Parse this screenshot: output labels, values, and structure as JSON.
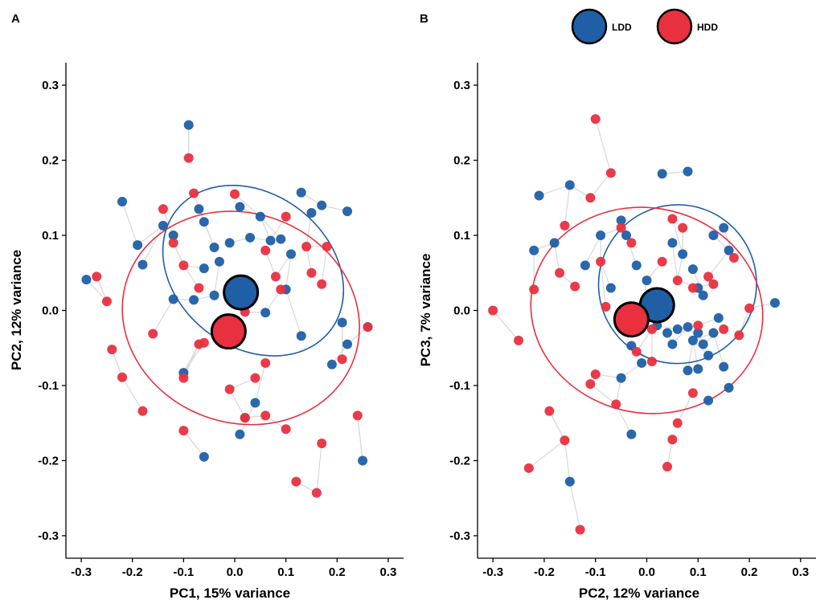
{
  "legend": [
    {
      "name": "LDD",
      "color": "#1f5fa6"
    },
    {
      "name": "HDD",
      "color": "#e8303f"
    }
  ],
  "colors": {
    "LDD": "#1f5fa6",
    "HDD": "#e8303f",
    "segment": "#d9d9d9"
  },
  "chart_data": [
    {
      "type": "scatter",
      "panel_label": "A",
      "xlabel": "PC1, 15% variance",
      "ylabel": "PC2, 12% variance",
      "xlim": [
        -0.33,
        0.33
      ],
      "ylim": [
        -0.33,
        0.33
      ],
      "xticks": [
        -0.3,
        -0.2,
        -0.1,
        0.0,
        0.1,
        0.2,
        0.3
      ],
      "yticks": [
        -0.3,
        -0.2,
        -0.1,
        0.0,
        0.1,
        0.2,
        0.3
      ],
      "xtick_labels": [
        "-0.3",
        "-0.2",
        "-0.1",
        "0.0",
        "0.1",
        "0.2",
        "0.3"
      ],
      "ytick_labels": [
        "-0.3",
        "-0.2",
        "-0.1",
        "0.0",
        "0.1",
        "0.2",
        "0.3"
      ],
      "grid": false,
      "legend_position": "top-center",
      "series": [
        {
          "name": "LDD",
          "color": "#1f5fa6",
          "points": [
            [
              -0.29,
              0.041
            ],
            [
              -0.22,
              0.145
            ],
            [
              -0.19,
              0.087
            ],
            [
              -0.18,
              0.061
            ],
            [
              -0.14,
              0.113
            ],
            [
              -0.12,
              0.1
            ],
            [
              -0.09,
              0.247
            ],
            [
              -0.07,
              0.135
            ],
            [
              -0.06,
              0.118
            ],
            [
              -0.04,
              0.084
            ],
            [
              -0.03,
              0.065
            ],
            [
              -0.01,
              0.09
            ],
            [
              0.01,
              0.138
            ],
            [
              0.03,
              0.097
            ],
            [
              0.05,
              0.125
            ],
            [
              0.07,
              0.093
            ],
            [
              0.09,
              0.095
            ],
            [
              0.11,
              0.075
            ],
            [
              0.13,
              0.157
            ],
            [
              0.15,
              0.13
            ],
            [
              0.17,
              0.14
            ],
            [
              0.22,
              0.132
            ],
            [
              -0.08,
              0.014
            ],
            [
              -0.06,
              0.056
            ],
            [
              -0.04,
              0.02
            ],
            [
              -0.12,
              0.015
            ],
            [
              -0.1,
              -0.083
            ],
            [
              0.06,
              -0.003
            ],
            [
              0.1,
              0.028
            ],
            [
              0.13,
              -0.034
            ],
            [
              0.19,
              -0.072
            ],
            [
              0.21,
              -0.016
            ],
            [
              0.22,
              -0.045
            ],
            [
              0.26,
              -0.022
            ],
            [
              -0.06,
              -0.195
            ],
            [
              0.02,
              -0.143
            ],
            [
              0.01,
              -0.165
            ],
            [
              0.04,
              -0.123
            ],
            [
              0.25,
              -0.2
            ]
          ]
        },
        {
          "name": "HDD",
          "color": "#e8303f",
          "points": [
            [
              -0.27,
              0.045
            ],
            [
              -0.25,
              0.012
            ],
            [
              -0.24,
              -0.052
            ],
            [
              -0.22,
              -0.089
            ],
            [
              -0.18,
              -0.134
            ],
            [
              -0.16,
              -0.031
            ],
            [
              -0.14,
              0.135
            ],
            [
              -0.12,
              0.09
            ],
            [
              -0.09,
              0.203
            ],
            [
              -0.08,
              0.156
            ],
            [
              -0.1,
              0.06
            ],
            [
              -0.07,
              0.03
            ],
            [
              -0.06,
              -0.043
            ],
            [
              -0.1,
              -0.09
            ],
            [
              -0.1,
              -0.16
            ],
            [
              0.0,
              0.155
            ],
            [
              0.02,
              -0.002
            ],
            [
              -0.01,
              -0.105
            ],
            [
              0.04,
              -0.09
            ],
            [
              0.06,
              0.08
            ],
            [
              0.08,
              0.045
            ],
            [
              0.09,
              0.028
            ],
            [
              0.1,
              0.125
            ],
            [
              0.14,
              0.085
            ],
            [
              0.15,
              0.05
            ],
            [
              0.17,
              0.035
            ],
            [
              0.18,
              0.085
            ],
            [
              0.21,
              -0.065
            ],
            [
              0.26,
              -0.022
            ],
            [
              0.06,
              -0.07
            ],
            [
              0.06,
              -0.14
            ],
            [
              0.02,
              -0.143
            ],
            [
              0.12,
              -0.228
            ],
            [
              0.16,
              -0.243
            ],
            [
              0.17,
              -0.177
            ],
            [
              0.1,
              -0.158
            ],
            [
              0.24,
              -0.14
            ],
            [
              -0.07,
              -0.045
            ]
          ]
        }
      ],
      "centroids": [
        {
          "name": "LDD",
          "x": 0.012,
          "y": 0.024
        },
        {
          "name": "HDD",
          "x": -0.012,
          "y": -0.028
        }
      ],
      "ellipses": [
        {
          "name": "LDD",
          "cx": 0.036,
          "cy": 0.053,
          "rx": 0.15,
          "ry": 0.13,
          "rotate_deg": 52
        },
        {
          "name": "HDD",
          "cx": 0.012,
          "cy": -0.01,
          "rx": 0.205,
          "ry": 0.16,
          "rotate_deg": 70
        }
      ]
    },
    {
      "type": "scatter",
      "panel_label": "B",
      "xlabel": "PC2, 12% variance",
      "ylabel": "PC3, 7% variance",
      "xlim": [
        -0.33,
        0.33
      ],
      "ylim": [
        -0.33,
        0.33
      ],
      "xticks": [
        -0.3,
        -0.2,
        -0.1,
        0.0,
        0.1,
        0.2,
        0.3
      ],
      "yticks": [
        -0.3,
        -0.2,
        -0.1,
        0.0,
        0.1,
        0.2,
        0.3
      ],
      "xtick_labels": [
        "-0.3",
        "-0.2",
        "-0.1",
        "0.0",
        "0.1",
        "0.2",
        "0.3"
      ],
      "ytick_labels": [
        "-0.3",
        "-0.2",
        "-0.1",
        "0.0",
        "0.1",
        "0.2",
        "0.3"
      ],
      "grid": false,
      "legend_position": "top-center",
      "series": [
        {
          "name": "LDD",
          "color": "#1f5fa6",
          "points": [
            [
              -0.22,
              0.08
            ],
            [
              -0.21,
              0.153
            ],
            [
              -0.18,
              0.09
            ],
            [
              -0.15,
              0.167
            ],
            [
              -0.12,
              0.06
            ],
            [
              -0.09,
              0.1
            ],
            [
              -0.07,
              0.03
            ],
            [
              -0.05,
              0.12
            ],
            [
              -0.04,
              0.1
            ],
            [
              -0.02,
              0.06
            ],
            [
              0.0,
              0.04
            ],
            [
              0.03,
              0.182
            ],
            [
              0.05,
              0.09
            ],
            [
              0.07,
              0.075
            ],
            [
              0.08,
              0.185
            ],
            [
              0.09,
              0.055
            ],
            [
              0.1,
              0.03
            ],
            [
              0.11,
              0.02
            ],
            [
              0.13,
              0.1
            ],
            [
              0.15,
              0.11
            ],
            [
              0.16,
              0.08
            ],
            [
              -0.05,
              -0.09
            ],
            [
              -0.03,
              -0.047
            ],
            [
              -0.01,
              -0.07
            ],
            [
              0.02,
              -0.02
            ],
            [
              0.04,
              -0.03
            ],
            [
              0.05,
              -0.045
            ],
            [
              0.06,
              -0.025
            ],
            [
              0.08,
              -0.022
            ],
            [
              0.09,
              -0.04
            ],
            [
              0.1,
              -0.03
            ],
            [
              0.11,
              -0.045
            ],
            [
              0.12,
              -0.06
            ],
            [
              0.13,
              -0.03
            ],
            [
              0.14,
              -0.01
            ],
            [
              0.15,
              -0.075
            ],
            [
              0.16,
              -0.103
            ],
            [
              0.12,
              -0.12
            ],
            [
              0.1,
              -0.078
            ],
            [
              0.08,
              -0.08
            ],
            [
              0.25,
              0.01
            ],
            [
              -0.03,
              -0.165
            ],
            [
              -0.15,
              -0.228
            ]
          ]
        },
        {
          "name": "HDD",
          "color": "#e8303f",
          "points": [
            [
              -0.3,
              0.0
            ],
            [
              -0.25,
              -0.04
            ],
            [
              -0.22,
              0.028
            ],
            [
              -0.19,
              -0.134
            ],
            [
              -0.17,
              0.05
            ],
            [
              -0.16,
              0.113
            ],
            [
              -0.14,
              0.032
            ],
            [
              -0.11,
              0.15
            ],
            [
              -0.1,
              0.255
            ],
            [
              -0.09,
              0.065
            ],
            [
              -0.08,
              0.005
            ],
            [
              -0.07,
              0.183
            ],
            [
              -0.05,
              0.11
            ],
            [
              -0.03,
              0.09
            ],
            [
              -0.01,
              0.003
            ],
            [
              0.01,
              -0.025
            ],
            [
              0.03,
              0.065
            ],
            [
              0.05,
              0.122
            ],
            [
              0.06,
              0.04
            ],
            [
              0.07,
              0.11
            ],
            [
              0.09,
              0.03
            ],
            [
              0.1,
              -0.02
            ],
            [
              0.12,
              0.045
            ],
            [
              0.13,
              0.035
            ],
            [
              0.17,
              0.07
            ],
            [
              0.2,
              0.003
            ],
            [
              0.18,
              -0.033
            ],
            [
              0.15,
              -0.025
            ],
            [
              0.09,
              -0.11
            ],
            [
              0.06,
              -0.15
            ],
            [
              0.05,
              -0.172
            ],
            [
              0.04,
              -0.208
            ],
            [
              -0.06,
              -0.125
            ],
            [
              -0.1,
              -0.085
            ],
            [
              -0.11,
              -0.098
            ],
            [
              -0.16,
              -0.173
            ],
            [
              -0.23,
              -0.21
            ],
            [
              -0.13,
              -0.292
            ],
            [
              0.01,
              -0.068
            ],
            [
              -0.02,
              -0.055
            ]
          ]
        }
      ],
      "centroids": [
        {
          "name": "LDD",
          "x": 0.02,
          "y": 0.007
        },
        {
          "name": "HDD",
          "x": -0.03,
          "y": -0.012
        }
      ],
      "ellipses": [
        {
          "name": "LDD",
          "cx": 0.06,
          "cy": 0.035,
          "rx": 0.155,
          "ry": 0.105,
          "rotate_deg": 72
        },
        {
          "name": "HDD",
          "cx": 0.0,
          "cy": 0.0,
          "rx": 0.2,
          "ry": 0.155,
          "rotate_deg": 78
        }
      ]
    }
  ]
}
